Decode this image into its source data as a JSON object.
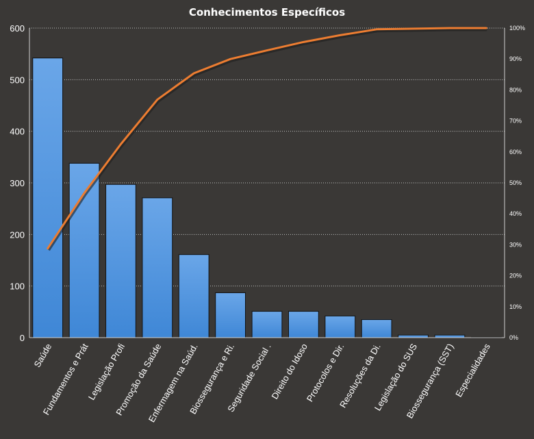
{
  "chart_data": {
    "type": "bar",
    "title": "Conhecimentos Específicos",
    "categories": [
      "Saúde",
      "Fundamentos  e Prát",
      "Legislação Profi",
      "Promoção da Saúde",
      "Enfermagem na Saúd.",
      "Biossegurança e Ri.",
      "Seguridade Social .",
      "Direito do Idoso",
      "Protocolos e Dir.",
      "Resoluções da Di.",
      "Legislação do SUS",
      "Biossegurança (SST)",
      "Especialidades"
    ],
    "series": [
      {
        "type": "bar",
        "values": [
          542,
          338,
          297,
          271,
          161,
          87,
          51,
          51,
          42,
          35,
          5,
          5,
          1
        ],
        "color": "#4a90d9"
      },
      {
        "type": "line",
        "axis": "secondary",
        "values": [
          28.8,
          46.7,
          62.5,
          76.9,
          85.4,
          90.0,
          92.8,
          95.5,
          97.7,
          99.6,
          99.8,
          100.0,
          100.0
        ],
        "color": "#ed7d31"
      }
    ],
    "ylim": [
      0,
      600
    ],
    "yticks": [
      0,
      100,
      200,
      300,
      400,
      500,
      600
    ],
    "y2lim": [
      0,
      100
    ],
    "y2ticks": [
      "0%",
      "10%",
      "20%",
      "30%",
      "40%",
      "50%",
      "60%",
      "70%",
      "80%",
      "90%",
      "100%"
    ],
    "grid": true,
    "legend": "none",
    "background_color": "#3a3836"
  }
}
